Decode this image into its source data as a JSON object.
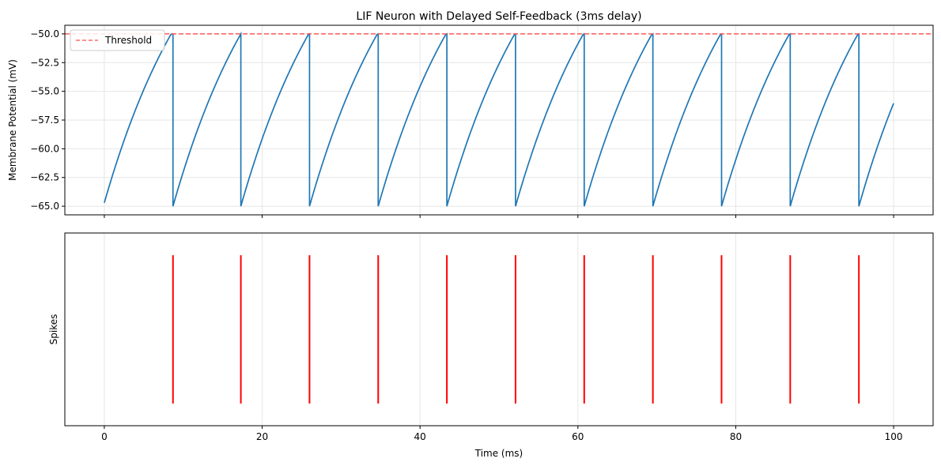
{
  "chart_data": [
    {
      "type": "line",
      "title": "LIF Neuron with Delayed Self-Feedback (3ms delay)",
      "xlabel": "",
      "ylabel": "Membrane Potential (mV)",
      "xlim": [
        -5,
        105
      ],
      "ylim": [
        -65.75,
        -49.25
      ],
      "yticks": [
        "−50.0",
        "−52.5",
        "−55.0",
        "−57.5",
        "−60.0",
        "−62.5",
        "−65.0"
      ],
      "ytick_values": [
        -50.0,
        -52.5,
        -55.0,
        -57.5,
        -60.0,
        -62.5,
        -65.0
      ],
      "xticks": [
        0,
        20,
        40,
        60,
        80,
        100
      ],
      "show_xtick_labels": false,
      "grid": true,
      "legend": {
        "placement": "upper-left",
        "entries": [
          "Threshold"
        ]
      },
      "threshold": -50.0,
      "series": [
        {
          "name": "Membrane Potential",
          "color": "#1f77b4",
          "resting": -65.0,
          "start_value": -64.7,
          "reset": -65.0,
          "end_time": 100,
          "end_value": -55.9,
          "spike_times": [
            8.7,
            17.3,
            26.0,
            34.7,
            43.4,
            52.1,
            60.8,
            69.5,
            78.2,
            86.9,
            95.6
          ]
        },
        {
          "name": "Threshold",
          "color": "#ff5a5a",
          "style": "dashed",
          "value": -50.0
        }
      ]
    },
    {
      "type": "scatter",
      "title": "",
      "xlabel": "Time (ms)",
      "ylabel": "Spikes",
      "xlim": [
        -5,
        105
      ],
      "ylim": [
        0.35,
        1.65
      ],
      "xticks": [
        0,
        20,
        40,
        60,
        80,
        100
      ],
      "xtick_labels": [
        "0",
        "20",
        "40",
        "60",
        "80",
        "100"
      ],
      "show_yticks": false,
      "grid": true,
      "series": [
        {
          "name": "Spikes",
          "color": "#ff0000",
          "marker": "vertical-line",
          "y": 1,
          "x": [
            8.7,
            17.3,
            26.0,
            34.7,
            43.4,
            52.1,
            60.8,
            69.5,
            78.2,
            86.9,
            95.6
          ]
        }
      ]
    }
  ]
}
